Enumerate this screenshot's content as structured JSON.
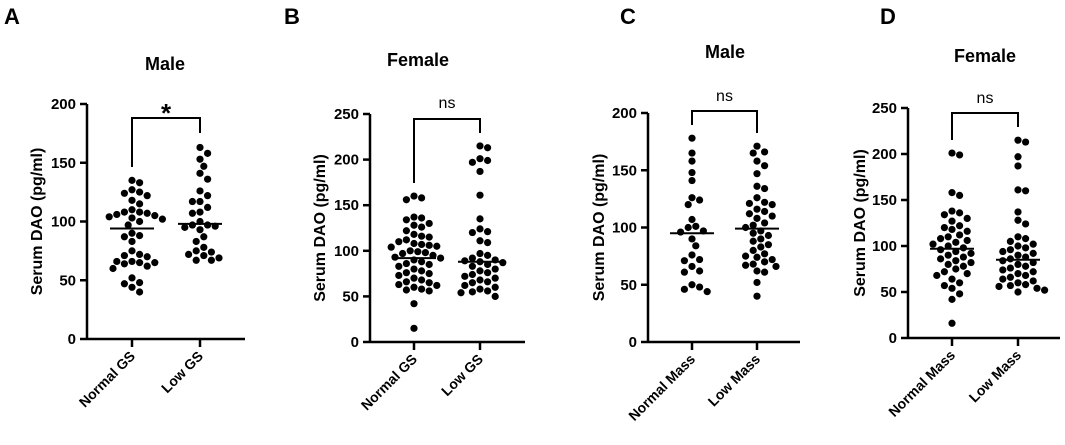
{
  "chart_data": [
    {
      "type": "scatter",
      "panel_label": "A",
      "title": "Male",
      "ylabel": "Serum  DAO  (pg/ml)",
      "ylim": [
        0,
        200
      ],
      "yticks": [
        0,
        50,
        100,
        150,
        200
      ],
      "categories": [
        "Normal GS",
        "Low GS"
      ],
      "means": [
        94,
        98
      ],
      "significance": "*",
      "series": [
        {
          "name": "Normal GS",
          "values": [
            135,
            133,
            127,
            125,
            124,
            122,
            118,
            115,
            110,
            108,
            108,
            107,
            106,
            105,
            104,
            103,
            102,
            100,
            97,
            90,
            88,
            87,
            83,
            75,
            72,
            71,
            70,
            66,
            66,
            65,
            65,
            64,
            62,
            60,
            52,
            48,
            47,
            44,
            40
          ]
        },
        {
          "name": "Low GS",
          "values": [
            163,
            158,
            153,
            147,
            141,
            136,
            126,
            122,
            117,
            117,
            112,
            108,
            107,
            100,
            97,
            97,
            96,
            95,
            93,
            87,
            83,
            78,
            75,
            74,
            72,
            71,
            69,
            67,
            67
          ]
        }
      ]
    },
    {
      "type": "scatter",
      "panel_label": "B",
      "title": "Female",
      "ylabel": "Serum  DAO  (pg/ml)",
      "ylim": [
        0,
        250
      ],
      "yticks": [
        0,
        50,
        100,
        150,
        200,
        250
      ],
      "categories": [
        "Normal GS",
        "Low GS"
      ],
      "means": [
        92,
        88
      ],
      "significance": "ns",
      "series": [
        {
          "name": "Normal GS",
          "values": [
            160,
            158,
            156,
            137,
            136,
            134,
            130,
            128,
            126,
            122,
            118,
            116,
            115,
            112,
            110,
            108,
            107,
            106,
            105,
            104,
            100,
            99,
            98,
            97,
            95,
            93,
            92,
            90,
            88,
            86,
            85,
            83,
            80,
            78,
            76,
            75,
            73,
            70,
            68,
            66,
            65,
            63,
            62,
            60,
            58,
            57,
            56,
            42,
            15
          ]
        },
        {
          "name": "Low GS",
          "values": [
            215,
            213,
            201,
            199,
            197,
            187,
            161,
            135,
            124,
            121,
            120,
            111,
            109,
            97,
            95,
            92,
            90,
            89,
            88,
            87,
            85,
            83,
            80,
            78,
            76,
            74,
            72,
            70,
            68,
            66,
            65,
            62,
            60,
            58,
            56,
            55,
            54,
            50
          ]
        }
      ]
    },
    {
      "type": "scatter",
      "panel_label": "C",
      "title": "Male",
      "ylabel": "Serum  DAO  (pg/ml)",
      "ylim": [
        0,
        200
      ],
      "yticks": [
        0,
        50,
        100,
        150,
        200
      ],
      "categories": [
        "Normal Mass",
        "Low Mass"
      ],
      "means": [
        95,
        99
      ],
      "significance": "ns",
      "series": [
        {
          "name": "Normal Mass",
          "values": [
            178,
            165,
            158,
            148,
            141,
            126,
            124,
            120,
            107,
            101,
            100,
            97,
            96,
            90,
            84,
            76,
            72,
            71,
            66,
            62,
            61,
            50,
            48,
            46,
            44
          ]
        },
        {
          "name": "Low Mass",
          "values": [
            171,
            166,
            165,
            158,
            154,
            147,
            136,
            134,
            126,
            122,
            121,
            120,
            116,
            114,
            112,
            110,
            108,
            104,
            102,
            100,
            97,
            95,
            93,
            90,
            88,
            85,
            83,
            80,
            77,
            75,
            74,
            72,
            70,
            68,
            67,
            66,
            62,
            61,
            52,
            40
          ]
        }
      ]
    },
    {
      "type": "scatter",
      "panel_label": "D",
      "title": "Female",
      "ylabel": "Serum  DAO  (pg/ml)",
      "ylim": [
        0,
        250
      ],
      "yticks": [
        0,
        50,
        100,
        150,
        200,
        250
      ],
      "categories": [
        "Normal Mass",
        "Low Mass"
      ],
      "means": [
        97,
        85
      ],
      "significance": "ns",
      "series": [
        {
          "name": "Normal Mass",
          "values": [
            201,
            199,
            158,
            155,
            138,
            136,
            134,
            130,
            127,
            122,
            120,
            118,
            116,
            112,
            110,
            108,
            106,
            104,
            102,
            100,
            98,
            96,
            94,
            92,
            90,
            88,
            86,
            84,
            82,
            80,
            78,
            75,
            72,
            70,
            68,
            64,
            60,
            57,
            54,
            48,
            42,
            16
          ]
        },
        {
          "name": "Low Mass",
          "values": [
            215,
            213,
            197,
            187,
            161,
            160,
            137,
            128,
            124,
            110,
            108,
            105,
            102,
            100,
            98,
            96,
            94,
            92,
            90,
            88,
            86,
            84,
            82,
            80,
            78,
            76,
            74,
            72,
            70,
            68,
            66,
            64,
            62,
            60,
            58,
            57,
            56,
            54,
            52,
            50
          ]
        }
      ]
    }
  ]
}
